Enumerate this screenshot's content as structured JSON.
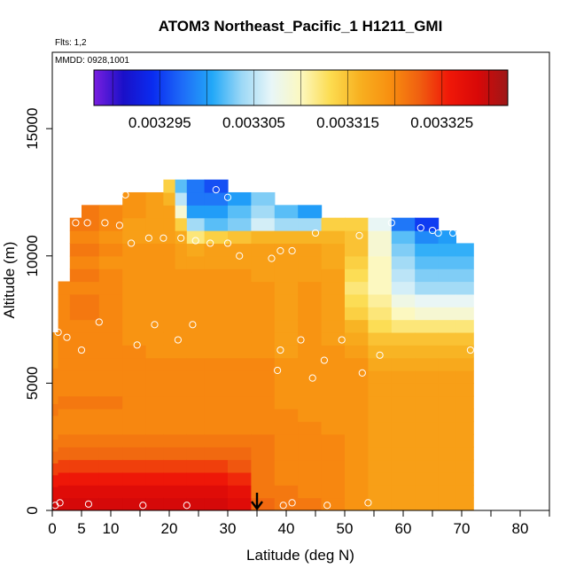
{
  "chart_data": {
    "type": "heatmap",
    "title": "ATOM3 Northeast_Pacific_1 H1211_GMI",
    "flights_label": "Flts: 1,2",
    "dates_label": "MMDD: 0928,1001",
    "xlabel": "Latitude (deg N)",
    "ylabel": "Altitude (m)",
    "xlim": [
      0,
      85
    ],
    "ylim": [
      0,
      18000
    ],
    "x_ticks": [
      0,
      5,
      10,
      20,
      30,
      40,
      50,
      60,
      70,
      80
    ],
    "x_ticks_unlabeled": [
      15,
      25,
      35,
      45,
      55,
      65,
      75,
      85
    ],
    "y_ticks": [
      0,
      5000,
      10000,
      15000
    ],
    "colorbar": {
      "min": 0.003288,
      "max": 0.003332,
      "tick_values": [
        0.003295,
        0.003305,
        0.003315,
        0.003325
      ],
      "tick_labels": [
        "0.003295",
        "0.003305",
        "0.003315",
        "0.003325"
      ],
      "colors": [
        "#7a1fe0",
        "#1a10c8",
        "#0a2cf0",
        "#1e6cf8",
        "#22a8f8",
        "#9cd8f6",
        "#e8f6f8",
        "#fcf8c0",
        "#fcdc50",
        "#f8b020",
        "#f89010",
        "#f06010",
        "#f01808",
        "#d80808",
        "#9c1818"
      ]
    },
    "marker": {
      "latitude": 35,
      "label": "down-arrow"
    },
    "columns": [
      {
        "lat": 0,
        "top": 7000,
        "values": [
          0.003329,
          0.003328,
          0.003326,
          0.003324,
          0.003322,
          0.003321,
          0.00332,
          0.00332,
          0.003321,
          0.00332,
          0.00332,
          0.00332,
          0.003319,
          0.003319,
          0.003319
        ]
      },
      {
        "lat": 2,
        "top": 9000,
        "values": [
          0.003329,
          0.003328,
          0.003326,
          0.003324,
          0.003322,
          0.003321,
          0.00332,
          0.00332,
          0.003321,
          0.00332,
          0.00332,
          0.00332,
          0.00332,
          0.00332,
          0.00332,
          0.00332,
          0.00332,
          0.00332
        ]
      },
      {
        "lat": 4,
        "top": 11500,
        "values": [
          0.003329,
          0.003328,
          0.003326,
          0.003324,
          0.003322,
          0.003321,
          0.00332,
          0.00332,
          0.003321,
          0.00332,
          0.00332,
          0.00332,
          0.00332,
          0.00332,
          0.00332,
          0.003321,
          0.003321,
          0.00332,
          0.003321,
          0.00332,
          0.003321,
          0.00332,
          0.003321
        ]
      },
      {
        "lat": 6,
        "top": 12000,
        "values": [
          0.003329,
          0.003328,
          0.003326,
          0.003324,
          0.003322,
          0.003321,
          0.00332,
          0.00332,
          0.003321,
          0.00332,
          0.00332,
          0.00332,
          0.00332,
          0.00332,
          0.00332,
          0.003321,
          0.003321,
          0.00332,
          0.003321,
          0.00332,
          0.003321,
          0.00332,
          0.003321,
          0.003321
        ]
      },
      {
        "lat": 10,
        "top": 12000,
        "values": [
          0.003329,
          0.003328,
          0.003326,
          0.003324,
          0.003322,
          0.003321,
          0.00332,
          0.00332,
          0.003321,
          0.00332,
          0.00332,
          0.00332,
          0.00332,
          0.00332,
          0.00332,
          0.00332,
          0.00332,
          0.00332,
          0.00332,
          0.003319,
          0.00332,
          0.003319,
          0.00332,
          0.00332
        ]
      },
      {
        "lat": 14,
        "top": 12500,
        "values": [
          0.003329,
          0.003328,
          0.003326,
          0.003324,
          0.003322,
          0.003321,
          0.00332,
          0.00332,
          0.00332,
          0.00332,
          0.00332,
          0.00332,
          0.00332,
          0.003319,
          0.003319,
          0.003319,
          0.003319,
          0.003319,
          0.003319,
          0.003319,
          0.003319,
          0.003318,
          0.003318,
          0.003319,
          0.003319
        ]
      },
      {
        "lat": 18,
        "top": 12500,
        "values": [
          0.003329,
          0.003328,
          0.003326,
          0.003324,
          0.003322,
          0.003321,
          0.00332,
          0.00332,
          0.00332,
          0.00332,
          0.00332,
          0.00332,
          0.003319,
          0.003319,
          0.003319,
          0.003319,
          0.003319,
          0.003319,
          0.003319,
          0.003319,
          0.003319,
          0.003318,
          0.003318,
          0.003318,
          0.003318
        ]
      },
      {
        "lat": 20,
        "top": 13000,
        "values": [
          0.003329,
          0.003328,
          0.003326,
          0.003324,
          0.003322,
          0.003321,
          0.00332,
          0.00332,
          0.00332,
          0.00332,
          0.00332,
          0.00332,
          0.003319,
          0.003319,
          0.003319,
          0.003319,
          0.003319,
          0.003319,
          0.003319,
          0.003319,
          0.003319,
          0.003318,
          0.003318,
          0.003318,
          0.003316,
          0.003314
        ]
      },
      {
        "lat": 22,
        "top": 13000,
        "values": [
          0.003329,
          0.003328,
          0.003326,
          0.003324,
          0.003322,
          0.003321,
          0.00332,
          0.00332,
          0.00332,
          0.00332,
          0.00332,
          0.00332,
          0.003319,
          0.003319,
          0.003319,
          0.003319,
          0.003319,
          0.003319,
          0.003319,
          0.003318,
          0.003318,
          0.003317,
          0.003314,
          0.003309,
          0.003305,
          0.003302
        ]
      },
      {
        "lat": 24,
        "top": 13000,
        "values": [
          0.003329,
          0.003328,
          0.003326,
          0.003324,
          0.003322,
          0.003321,
          0.00332,
          0.00332,
          0.00332,
          0.00332,
          0.00332,
          0.00332,
          0.003319,
          0.003319,
          0.003319,
          0.003319,
          0.003319,
          0.003319,
          0.003319,
          0.003318,
          0.003317,
          0.003312,
          0.003304,
          0.0033,
          0.003298,
          0.003298
        ]
      },
      {
        "lat": 28,
        "top": 13000,
        "values": [
          0.003329,
          0.003328,
          0.003326,
          0.003324,
          0.003322,
          0.003321,
          0.00332,
          0.00332,
          0.00332,
          0.00332,
          0.00332,
          0.00332,
          0.003319,
          0.003319,
          0.003319,
          0.003319,
          0.003319,
          0.003319,
          0.003319,
          0.003318,
          0.003318,
          0.003314,
          0.003302,
          0.0033,
          0.003298,
          0.003296
        ]
      },
      {
        "lat": 32,
        "top": 12500,
        "values": [
          0.003328,
          0.003327,
          0.003325,
          0.003323,
          0.003322,
          0.003321,
          0.00332,
          0.00332,
          0.00332,
          0.00332,
          0.00332,
          0.00332,
          0.003319,
          0.003319,
          0.003319,
          0.003319,
          0.003319,
          0.003319,
          0.003319,
          0.003318,
          0.003318,
          0.003315,
          0.003303,
          0.003302,
          0.0033
        ]
      },
      {
        "lat": 36,
        "top": 12500,
        "values": [
          0.003322,
          0.003321,
          0.003321,
          0.003321,
          0.003321,
          0.003321,
          0.00332,
          0.00332,
          0.00332,
          0.00332,
          0.00332,
          0.00332,
          0.003319,
          0.003319,
          0.003319,
          0.003319,
          0.003319,
          0.003319,
          0.003318,
          0.003318,
          0.003318,
          0.003316,
          0.003306,
          0.003304,
          0.003303
        ]
      },
      {
        "lat": 40,
        "top": 12000,
        "values": [
          0.003321,
          0.003321,
          0.00332,
          0.00332,
          0.00332,
          0.00332,
          0.00332,
          0.00332,
          0.003319,
          0.003319,
          0.003319,
          0.003319,
          0.003318,
          0.003318,
          0.003318,
          0.003318,
          0.003318,
          0.003318,
          0.003318,
          0.003318,
          0.003318,
          0.003316,
          0.003304,
          0.003302
        ]
      },
      {
        "lat": 44,
        "top": 12000,
        "values": [
          0.003321,
          0.00332,
          0.00332,
          0.00332,
          0.00332,
          0.00332,
          0.00332,
          0.003319,
          0.003319,
          0.003319,
          0.003319,
          0.003319,
          0.003319,
          0.003319,
          0.003319,
          0.003319,
          0.003319,
          0.003319,
          0.003318,
          0.003318,
          0.003318,
          0.003316,
          0.003304,
          0.0033
        ]
      },
      {
        "lat": 48,
        "top": 11500,
        "values": [
          0.00332,
          0.00332,
          0.00332,
          0.00332,
          0.00332,
          0.00332,
          0.003319,
          0.003319,
          0.003319,
          0.003319,
          0.003319,
          0.003319,
          0.003319,
          0.003318,
          0.003318,
          0.003318,
          0.003318,
          0.003318,
          0.003318,
          0.003317,
          0.003317,
          0.003316,
          0.003314
        ]
      },
      {
        "lat": 52,
        "top": 11500,
        "values": [
          0.003319,
          0.003319,
          0.003319,
          0.003319,
          0.003319,
          0.003319,
          0.003319,
          0.003319,
          0.003319,
          0.003319,
          0.003319,
          0.003319,
          0.003318,
          0.003317,
          0.003316,
          0.003314,
          0.003313,
          0.003312,
          0.003313,
          0.003314,
          0.003315,
          0.003315,
          0.003314
        ]
      },
      {
        "lat": 56,
        "top": 11500,
        "values": [
          0.003318,
          0.003318,
          0.003318,
          0.003318,
          0.003318,
          0.003318,
          0.003318,
          0.003318,
          0.003318,
          0.003318,
          0.003318,
          0.003317,
          0.003316,
          0.003315,
          0.003313,
          0.003312,
          0.003311,
          0.00331,
          0.00331,
          0.00331,
          0.003309,
          0.003309,
          0.003307
        ]
      },
      {
        "lat": 60,
        "top": 11500,
        "values": [
          0.003318,
          0.003318,
          0.003318,
          0.003318,
          0.003318,
          0.003318,
          0.003318,
          0.003318,
          0.003318,
          0.003318,
          0.003318,
          0.003317,
          0.003316,
          0.003315,
          0.003312,
          0.00331,
          0.003308,
          0.003306,
          0.003305,
          0.003304,
          0.003303,
          0.003302,
          0.003298
        ]
      },
      {
        "lat": 64,
        "top": 11500,
        "values": [
          0.003318,
          0.003318,
          0.003318,
          0.003318,
          0.003318,
          0.003318,
          0.003318,
          0.003318,
          0.003318,
          0.003318,
          0.003318,
          0.003317,
          0.003316,
          0.003315,
          0.003312,
          0.003309,
          0.003307,
          0.003304,
          0.003303,
          0.003302,
          0.003301,
          0.003299,
          0.003295
        ]
      },
      {
        "lat": 68,
        "top": 11000,
        "values": [
          0.003318,
          0.003318,
          0.003318,
          0.003318,
          0.003318,
          0.003318,
          0.003318,
          0.003318,
          0.003318,
          0.003318,
          0.003318,
          0.003317,
          0.003316,
          0.003315,
          0.003312,
          0.003309,
          0.003307,
          0.003304,
          0.003303,
          0.003302,
          0.003301,
          0.0033
        ]
      },
      {
        "lat": 70,
        "top": 10500,
        "values": [
          0.003318,
          0.003318,
          0.003318,
          0.003318,
          0.003318,
          0.003318,
          0.003318,
          0.003318,
          0.003318,
          0.003318,
          0.003318,
          0.003317,
          0.003316,
          0.003315,
          0.003312,
          0.003309,
          0.003307,
          0.003304,
          0.003303,
          0.003302,
          0.003301
        ]
      }
    ],
    "sample_points": [
      [
        0.5,
        200
      ],
      [
        1.3,
        300
      ],
      [
        6.2,
        250
      ],
      [
        15.5,
        200
      ],
      [
        23,
        200
      ],
      [
        39.5,
        200
      ],
      [
        41,
        300
      ],
      [
        47,
        200
      ],
      [
        54,
        300
      ],
      [
        1,
        7000
      ],
      [
        2.5,
        6800
      ],
      [
        5,
        6300
      ],
      [
        8,
        7400
      ],
      [
        14.5,
        6500
      ],
      [
        17.5,
        7300
      ],
      [
        21.5,
        6700
      ],
      [
        24,
        7300
      ],
      [
        38.5,
        5500
      ],
      [
        39,
        6300
      ],
      [
        42.5,
        6700
      ],
      [
        44.5,
        5200
      ],
      [
        46.5,
        5900
      ],
      [
        49.5,
        6700
      ],
      [
        53,
        5400
      ],
      [
        56,
        6100
      ],
      [
        71.5,
        6300
      ],
      [
        13.5,
        10500
      ],
      [
        16.5,
        10700
      ],
      [
        19,
        10700
      ],
      [
        22,
        10700
      ],
      [
        24.5,
        10600
      ],
      [
        27,
        10500
      ],
      [
        30,
        10500
      ],
      [
        32,
        10000
      ],
      [
        37.5,
        9900
      ],
      [
        39,
        10200
      ],
      [
        41,
        10200
      ],
      [
        45,
        10900
      ],
      [
        52.5,
        10800
      ],
      [
        58,
        11300
      ],
      [
        63,
        11100
      ],
      [
        65,
        11000
      ],
      [
        66,
        10900
      ],
      [
        68.5,
        10900
      ],
      [
        2.5,
        11800
      ],
      [
        4,
        11300
      ],
      [
        6,
        11300
      ],
      [
        9,
        11300
      ],
      [
        11.5,
        11200
      ],
      [
        12.5,
        12400
      ],
      [
        28,
        12600
      ],
      [
        30,
        12300
      ]
    ]
  }
}
